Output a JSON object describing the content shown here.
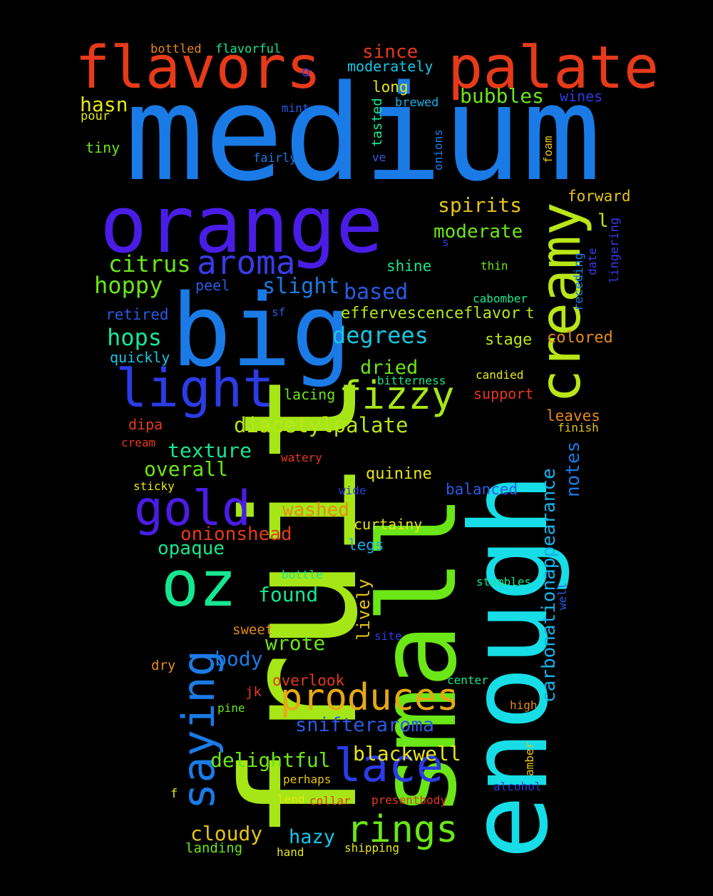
{
  "words": [
    {
      "text": "medium",
      "color": "#1a7be6"
    },
    {
      "text": "fruit",
      "color": "#a6e617"
    },
    {
      "text": "enough",
      "color": "#17dde6"
    },
    {
      "text": "small",
      "color": "#6be617"
    },
    {
      "text": "orange",
      "color": "#4a1de6"
    },
    {
      "text": "big",
      "color": "#1a7be6"
    },
    {
      "text": "flavors",
      "color": "#e63a1a"
    },
    {
      "text": "palate",
      "color": "#e63a1a"
    },
    {
      "text": "creamy",
      "color": "#b8e617"
    },
    {
      "text": "light",
      "color": "#2b3be6"
    },
    {
      "text": "oz",
      "color": "#17e690"
    },
    {
      "text": "saying",
      "color": "#1a7be6"
    },
    {
      "text": "gold",
      "color": "#4a1de6"
    },
    {
      "text": "lace",
      "color": "#2b3be6"
    },
    {
      "text": "aroma",
      "color": "#3a3be6"
    },
    {
      "text": "fizzy",
      "color": "#a6e617"
    },
    {
      "text": "rings",
      "color": "#6be617"
    },
    {
      "text": "produces",
      "color": "#e6a817"
    },
    {
      "text": "citrus",
      "color": "#6be617"
    },
    {
      "text": "hoppy",
      "color": "#6be617"
    },
    {
      "text": "hops",
      "color": "#17e6a0"
    },
    {
      "text": "degrees",
      "color": "#17c6e6"
    },
    {
      "text": "slight",
      "color": "#1a7be6"
    },
    {
      "text": "based",
      "color": "#2b5be6"
    },
    {
      "text": "spirits",
      "color": "#e6c417"
    },
    {
      "text": "moderate",
      "color": "#6be617"
    },
    {
      "text": "bubbles",
      "color": "#6be617"
    },
    {
      "text": "since",
      "color": "#e63a1a"
    },
    {
      "text": "moderately",
      "color": "#17c6e6"
    },
    {
      "text": "hasn",
      "color": "#e6e617"
    },
    {
      "text": "diacetylpalate",
      "color": "#b8e617"
    },
    {
      "text": "texture",
      "color": "#17e690"
    },
    {
      "text": "overall",
      "color": "#6be617"
    },
    {
      "text": "washed",
      "color": "#e68a17"
    },
    {
      "text": "onionshead",
      "color": "#e63a1a"
    },
    {
      "text": "opaque",
      "color": "#17e690"
    },
    {
      "text": "dried",
      "color": "#6be617"
    },
    {
      "text": "found",
      "color": "#17e690"
    },
    {
      "text": "wrote",
      "color": "#6be617"
    },
    {
      "text": "body",
      "color": "#1a7be6"
    },
    {
      "text": "snifteraroma",
      "color": "#2b5be6"
    },
    {
      "text": "delightful",
      "color": "#6be617"
    },
    {
      "text": "blackwell",
      "color": "#e6e617"
    },
    {
      "text": "cloudy",
      "color": "#e6c417"
    },
    {
      "text": "hazy",
      "color": "#17c6e6"
    },
    {
      "text": "carbonationappearance",
      "color": "#17b0e6"
    },
    {
      "text": "notes",
      "color": "#1a7be6"
    },
    {
      "text": "effervescenceflavor",
      "color": "#b8e617"
    },
    {
      "text": "lively",
      "color": "#e6c417"
    },
    {
      "text": "stage",
      "color": "#b8e617"
    },
    {
      "text": "colored",
      "color": "#e68a17"
    },
    {
      "text": "forward",
      "color": "#e6c417"
    },
    {
      "text": "quinine",
      "color": "#e6e617"
    },
    {
      "text": "balanced",
      "color": "#2b5be6"
    },
    {
      "text": "curtainy",
      "color": "#e6e617"
    },
    {
      "text": "legs",
      "color": "#17b0e6"
    },
    {
      "text": "leaves",
      "color": "#e68a17"
    },
    {
      "text": "support",
      "color": "#e63a1a"
    },
    {
      "text": "lacing",
      "color": "#6be617"
    },
    {
      "text": "sweet",
      "color": "#e68a17"
    },
    {
      "text": "overlook",
      "color": "#e63a1a"
    },
    {
      "text": "shine",
      "color": "#17e690"
    },
    {
      "text": "retired",
      "color": "#2b5be6"
    },
    {
      "text": "peel",
      "color": "#2b5be6"
    },
    {
      "text": "quickly",
      "color": "#17c6e6"
    },
    {
      "text": "bottled",
      "color": "#e68a17"
    },
    {
      "text": "flavorful",
      "color": "#17e690"
    },
    {
      "text": "long",
      "color": "#e6e617"
    },
    {
      "text": "tiny",
      "color": "#6be617"
    },
    {
      "text": "pour",
      "color": "#e6e617"
    },
    {
      "text": "mint",
      "color": "#2b5be6"
    },
    {
      "text": "fairly",
      "color": "#1a7be6"
    },
    {
      "text": "tasted",
      "color": "#17e690"
    },
    {
      "text": "brewed",
      "color": "#17b0e6"
    },
    {
      "text": "wines",
      "color": "#2b3be6"
    },
    {
      "text": "onions",
      "color": "#1a7be6"
    },
    {
      "text": "foam",
      "color": "#e6c417"
    },
    {
      "text": "ve",
      "color": "#2b5be6"
    },
    {
      "text": "lingering",
      "color": "#3a3be6"
    },
    {
      "text": "receding",
      "color": "#1a7be6"
    },
    {
      "text": "date",
      "color": "#3a3be6"
    },
    {
      "text": "thin",
      "color": "#6be617"
    },
    {
      "text": "cabomber",
      "color": "#17e690"
    },
    {
      "text": "candied",
      "color": "#e6e617"
    },
    {
      "text": "bitterness",
      "color": "#17e690"
    },
    {
      "text": "finish",
      "color": "#e6c417"
    },
    {
      "text": "dipa",
      "color": "#e63a1a"
    },
    {
      "text": "cream",
      "color": "#e63a1a"
    },
    {
      "text": "watery",
      "color": "#e63a1a"
    },
    {
      "text": "sticky",
      "color": "#e6e617"
    },
    {
      "text": "wide",
      "color": "#2b3be6"
    },
    {
      "text": "bottle",
      "color": "#17e690"
    },
    {
      "text": "stumbles",
      "color": "#17e690"
    },
    {
      "text": "well",
      "color": "#2b5be6"
    },
    {
      "text": "site",
      "color": "#2b3be6"
    },
    {
      "text": "dry",
      "color": "#e68a17"
    },
    {
      "text": "jk",
      "color": "#e63a1a"
    },
    {
      "text": "pine",
      "color": "#6be617"
    },
    {
      "text": "center",
      "color": "#17e690"
    },
    {
      "text": "high",
      "color": "#e68a17"
    },
    {
      "text": "amber",
      "color": "#e6c417"
    },
    {
      "text": "perhaps",
      "color": "#e6c417"
    },
    {
      "text": "lend",
      "color": "#e6e617"
    },
    {
      "text": "collar",
      "color": "#e63a1a"
    },
    {
      "text": "presentbody",
      "color": "#e63a1a"
    },
    {
      "text": "alcohol",
      "color": "#2b3be6"
    },
    {
      "text": "f",
      "color": "#e6e617"
    },
    {
      "text": "landing",
      "color": "#6be617"
    },
    {
      "text": "hand",
      "color": "#e6e617"
    },
    {
      "text": "shipping",
      "color": "#e6e617"
    },
    {
      "text": "o",
      "color": "#2b3be6"
    },
    {
      "text": "l",
      "color": "#b8e617"
    },
    {
      "text": "s",
      "color": "#2b3be6"
    },
    {
      "text": "t",
      "color": "#b8e617"
    },
    {
      "text": "sf",
      "color": "#2b5be6"
    }
  ]
}
